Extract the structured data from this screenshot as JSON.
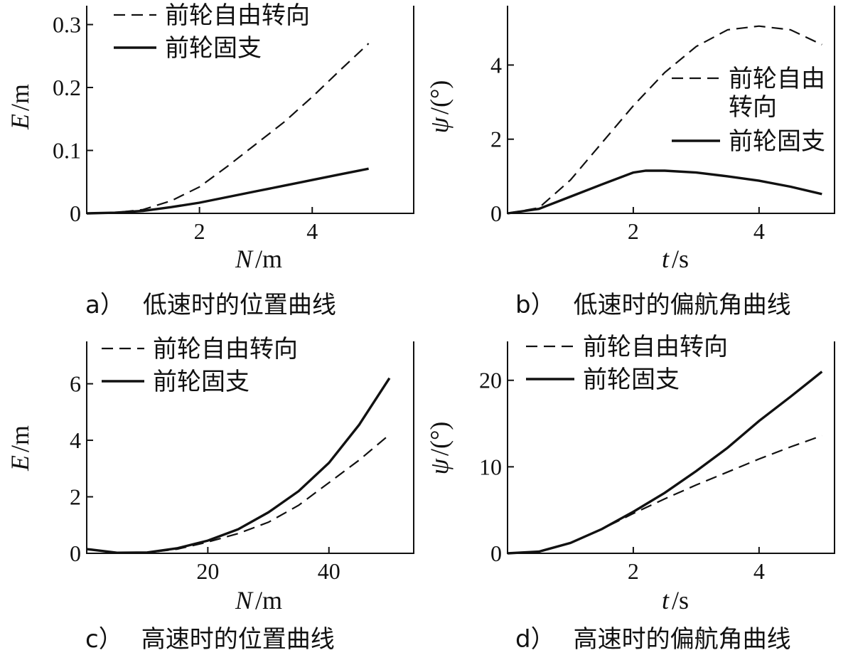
{
  "chart_data": [
    {
      "id": "a",
      "type": "line",
      "panel_label": "a）",
      "caption": "低速时的位置曲线",
      "xlabel": "N",
      "xunit": "/m",
      "ylabel": "E",
      "yunit": "/m",
      "xlim": [
        0,
        5.8
      ],
      "ylim": [
        0,
        0.33
      ],
      "xticks": [
        2,
        4
      ],
      "xtick_labels": [
        "2",
        "4"
      ],
      "yticks": [
        0,
        0.1,
        0.2,
        0.3
      ],
      "ytick_labels": [
        "0",
        "0.1",
        "0.2",
        "0.3"
      ],
      "legend": {
        "position": "top-left",
        "entries": [
          {
            "label": "前轮自由转向",
            "style": "dashed"
          },
          {
            "label": "前轮固支",
            "style": "solid"
          }
        ]
      },
      "series": [
        {
          "name": "前轮自由转向",
          "style": "dashed",
          "x": [
            0,
            0.5,
            1.0,
            1.5,
            2.0,
            2.5,
            3.0,
            3.5,
            4.0,
            4.5,
            5.0
          ],
          "y": [
            0,
            0.001,
            0.006,
            0.02,
            0.042,
            0.075,
            0.11,
            0.145,
            0.185,
            0.228,
            0.27
          ]
        },
        {
          "name": "前轮固支",
          "style": "solid",
          "x": [
            0,
            0.5,
            1.0,
            1.5,
            2.0,
            2.5,
            3.0,
            3.5,
            4.0,
            4.5,
            5.0
          ],
          "y": [
            0,
            0.001,
            0.004,
            0.01,
            0.017,
            0.026,
            0.035,
            0.044,
            0.053,
            0.062,
            0.071
          ]
        }
      ]
    },
    {
      "id": "b",
      "type": "line",
      "panel_label": "b）",
      "caption": "低速时的偏航角曲线",
      "xlabel": "t",
      "xunit": "/s",
      "ylabel": "ψ",
      "yunit": "/(°)",
      "xlim": [
        0,
        5.2
      ],
      "ylim": [
        0,
        5.6
      ],
      "xticks": [
        2,
        4
      ],
      "xtick_labels": [
        "2",
        "4"
      ],
      "yticks": [
        0,
        2,
        4
      ],
      "ytick_labels": [
        "0",
        "2",
        "4"
      ],
      "legend": {
        "position": "right",
        "entries": [
          {
            "label": "前轮自由转向",
            "style": "dashed"
          },
          {
            "label": "前轮固支",
            "style": "solid"
          }
        ]
      },
      "series": [
        {
          "name": "前轮自由转向",
          "style": "dashed",
          "x": [
            0,
            0.5,
            1.0,
            1.5,
            2.0,
            2.5,
            3.0,
            3.5,
            4.0,
            4.5,
            5.0
          ],
          "y": [
            0,
            0.15,
            0.9,
            1.9,
            2.9,
            3.8,
            4.5,
            4.95,
            5.05,
            4.95,
            4.55
          ]
        },
        {
          "name": "前轮固支",
          "style": "solid",
          "x": [
            0,
            0.5,
            1.0,
            1.5,
            2.0,
            2.2,
            2.5,
            3.0,
            3.5,
            4.0,
            4.5,
            5.0
          ],
          "y": [
            0,
            0.12,
            0.45,
            0.78,
            1.1,
            1.15,
            1.15,
            1.1,
            1.0,
            0.88,
            0.72,
            0.52
          ]
        }
      ]
    },
    {
      "id": "c",
      "type": "line",
      "panel_label": "c）",
      "caption": "高速时的位置曲线",
      "xlabel": "N",
      "xunit": "/m",
      "ylabel": "E",
      "yunit": "/m",
      "xlim": [
        0,
        54
      ],
      "ylim": [
        0,
        7.5
      ],
      "xticks": [
        20,
        40
      ],
      "xtick_labels": [
        "20",
        "40"
      ],
      "yticks": [
        0,
        2,
        4,
        6
      ],
      "ytick_labels": [
        "0",
        "2",
        "4",
        "6"
      ],
      "legend": {
        "position": "top-left",
        "entries": [
          {
            "label": "前轮自由转向",
            "style": "dashed"
          },
          {
            "label": "前轮固支",
            "style": "solid"
          }
        ]
      },
      "series": [
        {
          "name": "前轮自由转向",
          "style": "dashed",
          "x": [
            0,
            5,
            10,
            15,
            20,
            25,
            30,
            35,
            40,
            45,
            50
          ],
          "y": [
            0.15,
            0.02,
            0.02,
            0.15,
            0.4,
            0.7,
            1.1,
            1.7,
            2.5,
            3.3,
            4.2
          ]
        },
        {
          "name": "前轮固支",
          "style": "solid",
          "x": [
            0,
            5,
            10,
            15,
            20,
            25,
            30,
            35,
            40,
            45,
            50
          ],
          "y": [
            0.15,
            0.02,
            0.03,
            0.18,
            0.45,
            0.85,
            1.45,
            2.2,
            3.2,
            4.55,
            6.2
          ]
        }
      ]
    },
    {
      "id": "d",
      "type": "line",
      "panel_label": "d）",
      "caption": "高速时的偏航角曲线",
      "xlabel": "t",
      "xunit": "/s",
      "ylabel": "ψ",
      "yunit": "/(°)",
      "xlim": [
        0,
        5.2
      ],
      "ylim": [
        0,
        24.5
      ],
      "xticks": [
        2,
        4
      ],
      "xtick_labels": [
        "2",
        "4"
      ],
      "yticks": [
        0,
        10,
        20
      ],
      "ytick_labels": [
        "0",
        "10",
        "20"
      ],
      "legend": {
        "position": "top-left",
        "entries": [
          {
            "label": "前轮自由转向",
            "style": "dashed"
          },
          {
            "label": "前轮固支",
            "style": "solid"
          }
        ]
      },
      "series": [
        {
          "name": "前轮自由转向",
          "style": "dashed",
          "x": [
            0,
            0.5,
            1.0,
            1.5,
            2.0,
            2.5,
            3.0,
            3.5,
            4.0,
            4.5,
            5.0
          ],
          "y": [
            0,
            0.2,
            1.2,
            2.8,
            4.6,
            6.3,
            7.9,
            9.4,
            10.9,
            12.3,
            13.6
          ]
        },
        {
          "name": "前轮固支",
          "style": "solid",
          "x": [
            0,
            0.5,
            1.0,
            1.5,
            2.0,
            2.5,
            3.0,
            3.5,
            4.0,
            4.5,
            5.0
          ],
          "y": [
            0,
            0.2,
            1.2,
            2.8,
            4.8,
            7.0,
            9.5,
            12.2,
            15.3,
            18.1,
            21.0
          ]
        }
      ]
    }
  ]
}
